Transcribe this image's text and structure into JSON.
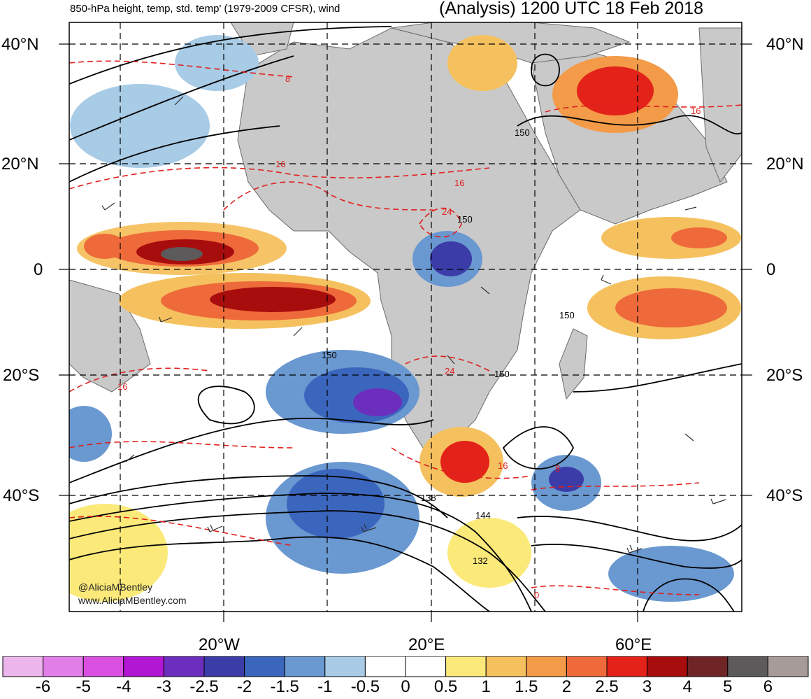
{
  "header": {
    "title_left": "850-hPa height, temp, std. temp' (1979-2009 CFSR), wind",
    "title_right": "(Analysis) 1200 UTC 18 Feb 2018"
  },
  "axes": {
    "lat_labels": [
      "40°N",
      "20°N",
      "0",
      "20°S",
      "40°S"
    ],
    "lon_labels": [
      "20°W",
      "20°E",
      "60°E"
    ]
  },
  "contour_labels": {
    "height": [
      "150",
      "150",
      "150",
      "150",
      "150",
      "138",
      "144",
      "132"
    ],
    "temperature": [
      "8",
      "16",
      "16",
      "24",
      "16",
      "24",
      "16",
      "16",
      "0",
      "8"
    ]
  },
  "credits": [
    "@AliciaMBentley",
    "www.AliciaMBentley.com"
  ],
  "colorbar": {
    "colors": [
      "#ecb6ec",
      "#e27ee8",
      "#d94fe0",
      "#b217d4",
      "#6c2fbd",
      "#3b3ca8",
      "#3b66bd",
      "#6a98d0",
      "#a8cbe6",
      "#ffffff",
      "#ffffff",
      "#fbe97a",
      "#f5c15f",
      "#f39b48",
      "#ee6a3a",
      "#e32219",
      "#a80d0d",
      "#6f2526",
      "#5c5a5a",
      "#a79b9a"
    ],
    "labels": [
      "-6",
      "-5",
      "-4",
      "-3",
      "-2.5",
      "-2",
      "-1.5",
      "-1",
      "-0.5",
      "0",
      "0.5",
      "1",
      "1.5",
      "2",
      "2.5",
      "3",
      "4",
      "5",
      "6"
    ]
  }
}
